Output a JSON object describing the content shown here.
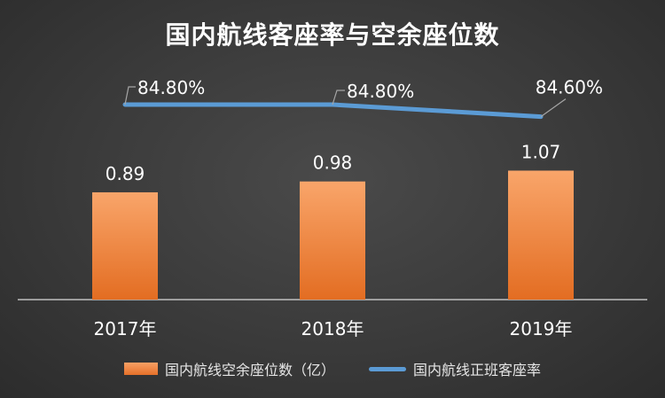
{
  "chart_data": {
    "type": "bar",
    "title": "国内航线客座率与空余座位数",
    "categories": [
      "2017年",
      "2018年",
      "2019年"
    ],
    "series": [
      {
        "name": "国内航线空余座位数（亿）",
        "type": "bar",
        "values": [
          0.89,
          0.98,
          1.07
        ],
        "labels": [
          "0.89",
          "0.98",
          "1.07"
        ],
        "color": "#ED7D31"
      },
      {
        "name": "国内航线正班客座率",
        "type": "line",
        "values": [
          84.8,
          84.8,
          84.6
        ],
        "labels": [
          "84.80%",
          "84.80%",
          "84.60%"
        ],
        "color": "#5B9BD5"
      }
    ],
    "legend_position": "bottom",
    "grid": false
  }
}
